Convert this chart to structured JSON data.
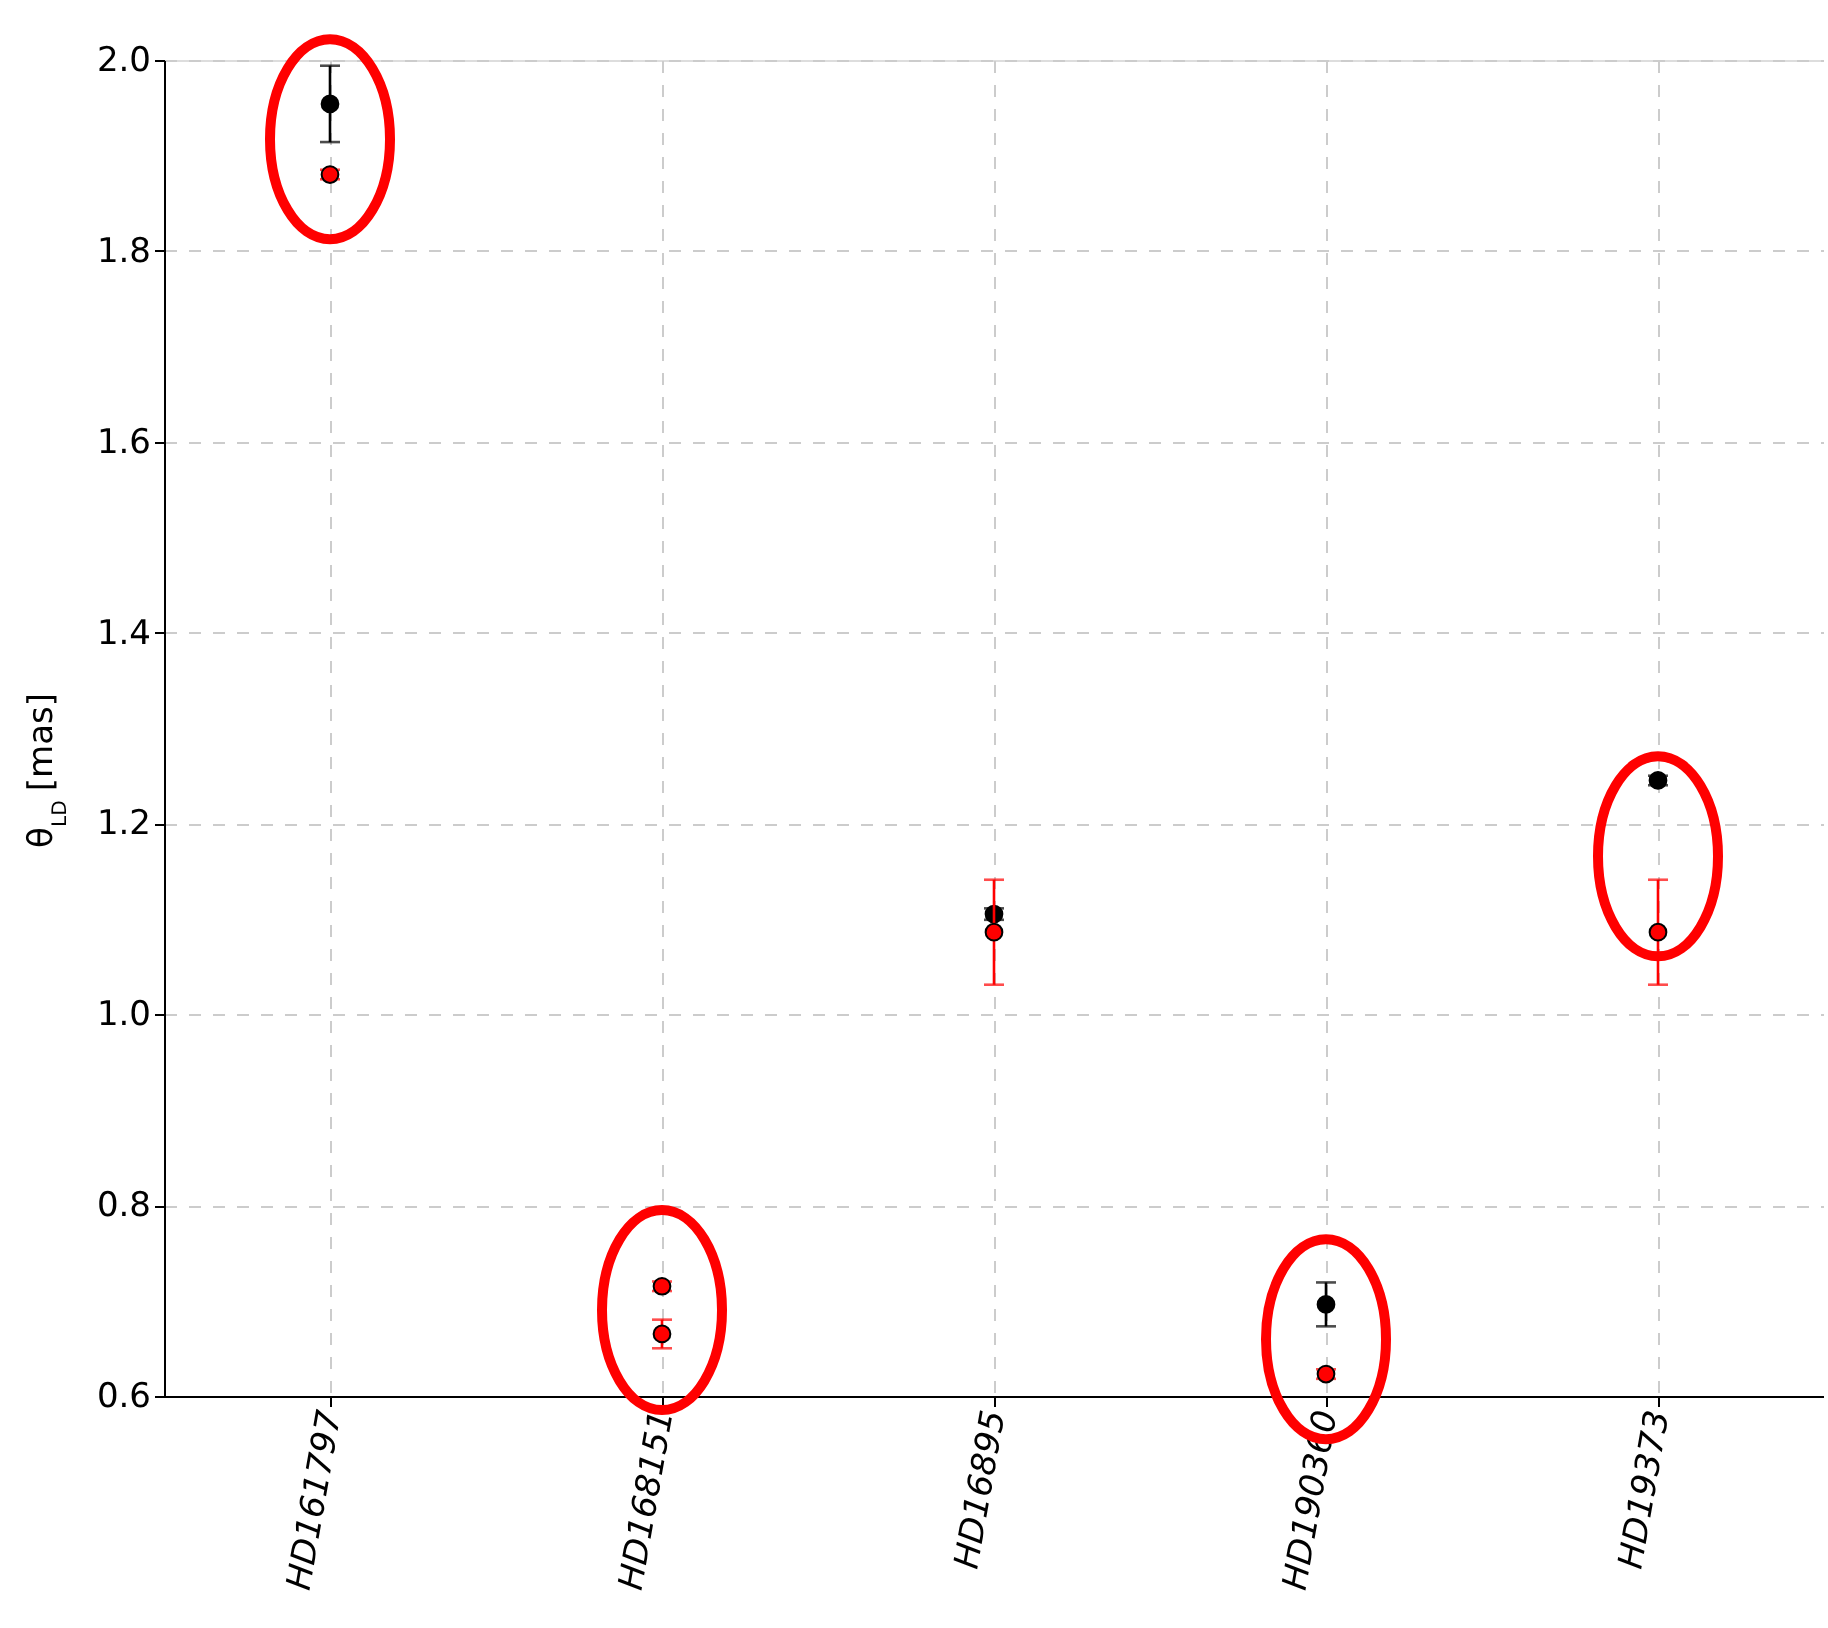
{
  "chart_data": {
    "type": "scatter",
    "ylabel": "θ$_{LD}$ [mas]",
    "categories": [
      "HD161797",
      "HD168151",
      "HD16895",
      "HD190360",
      "HD19373"
    ],
    "series": [
      {
        "color": "#000000",
        "values": [
          1.954,
          null,
          1.105,
          0.696,
          1.245
        ],
        "errors": [
          0.04,
          null,
          0.006,
          0.023,
          0.005
        ]
      },
      {
        "color": "#ff0000",
        "values": [
          1.88,
          0.665,
          1.086,
          0.623,
          1.086
        ],
        "errors": [
          0.005,
          0.015,
          0.055,
          0.005,
          0.055
        ]
      },
      {
        "color": "#ff0000",
        "values": [
          null,
          0.715,
          null,
          null,
          null
        ],
        "errors": [
          null,
          0.005,
          null,
          null,
          null
        ]
      }
    ],
    "ylim": [
      0.6,
      2.0
    ],
    "yticks": [
      0.6,
      0.8,
      {
        "value": 1,
        "label": "1.0"
      },
      1.2,
      1.4,
      1.6,
      1.8,
      {
        "value": 2,
        "label": "2.0"
      }
    ],
    "grid": true,
    "marker": "circle"
  }
}
